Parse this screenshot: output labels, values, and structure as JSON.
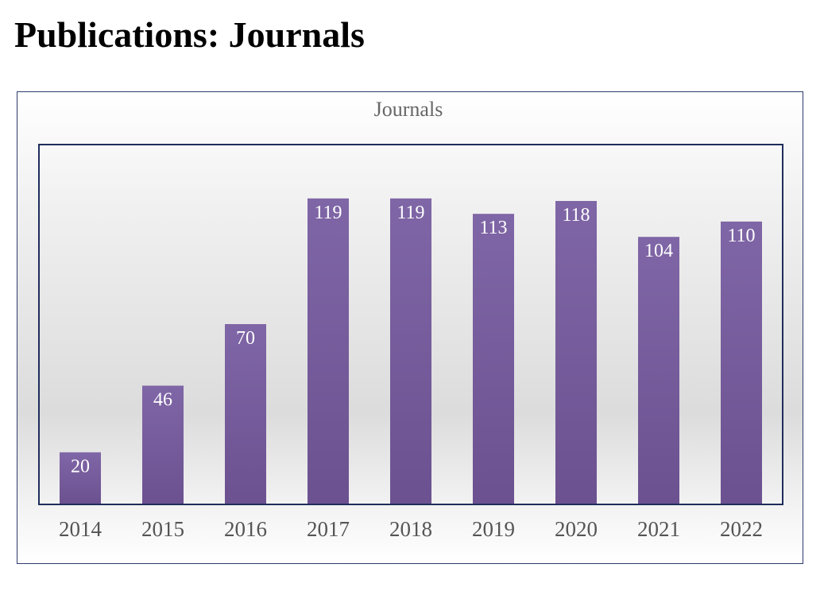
{
  "page": {
    "title": "Publications: Journals"
  },
  "colors": {
    "bar_top": "#7f66a6",
    "bar_bottom": "#6c5190",
    "plot_border": "#1f2d5c",
    "frame_border": "#2e3a6e"
  },
  "chart_data": {
    "type": "bar",
    "title": "Journals",
    "xlabel": "",
    "ylabel": "",
    "categories": [
      "2014",
      "2015",
      "2016",
      "2017",
      "2018",
      "2019",
      "2020",
      "2021",
      "2022"
    ],
    "values": [
      20,
      46,
      70,
      119,
      119,
      113,
      118,
      104,
      110
    ],
    "data_labels": [
      "20",
      "46",
      "70",
      "119",
      "119",
      "113",
      "118",
      "104",
      "110"
    ],
    "ylim": [
      0,
      140
    ],
    "grid": false,
    "legend": "none"
  }
}
